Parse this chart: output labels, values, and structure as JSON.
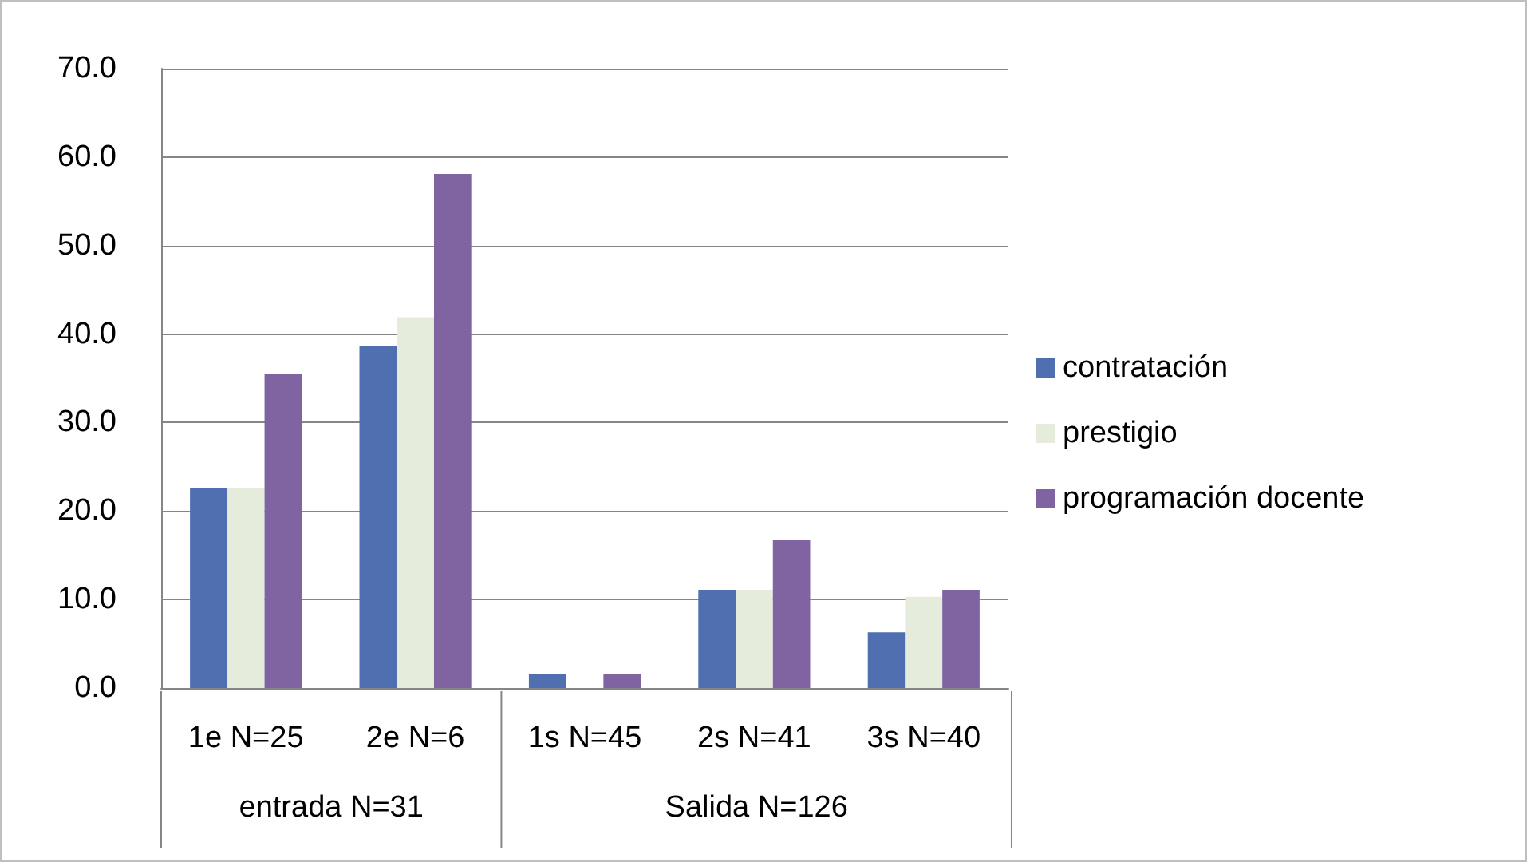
{
  "chart_data": {
    "type": "bar",
    "categories": [
      "1e N=25",
      "2e N=6",
      "1s N=45",
      "2s N=41",
      "3s N=40"
    ],
    "series": [
      {
        "name": "contratación",
        "color": "#4f6fb0",
        "values": [
          22.6,
          38.7,
          1.6,
          11.1,
          6.3
        ]
      },
      {
        "name": "prestigio",
        "color": "#e6ecdc",
        "values": [
          22.6,
          41.9,
          0,
          11.1,
          10.3
        ]
      },
      {
        "name": "programación docente",
        "color": "#8064a2",
        "values": [
          35.5,
          58.1,
          1.6,
          16.7,
          11.1
        ]
      }
    ],
    "ylim": [
      0,
      70
    ],
    "yticks": [
      {
        "value": 0,
        "label": "0.0"
      },
      {
        "value": 10,
        "label": "10.0"
      },
      {
        "value": 20,
        "label": "20.0"
      },
      {
        "value": 30,
        "label": "30.0"
      },
      {
        "value": 40,
        "label": "40.0"
      },
      {
        "value": 50,
        "label": "50.0"
      },
      {
        "value": 60,
        "label": "60.0"
      },
      {
        "value": 70,
        "label": "70.0"
      }
    ],
    "grid": "y",
    "legend": "right",
    "annotations": [
      "entrada N=31",
      "Salida N=126"
    ]
  }
}
